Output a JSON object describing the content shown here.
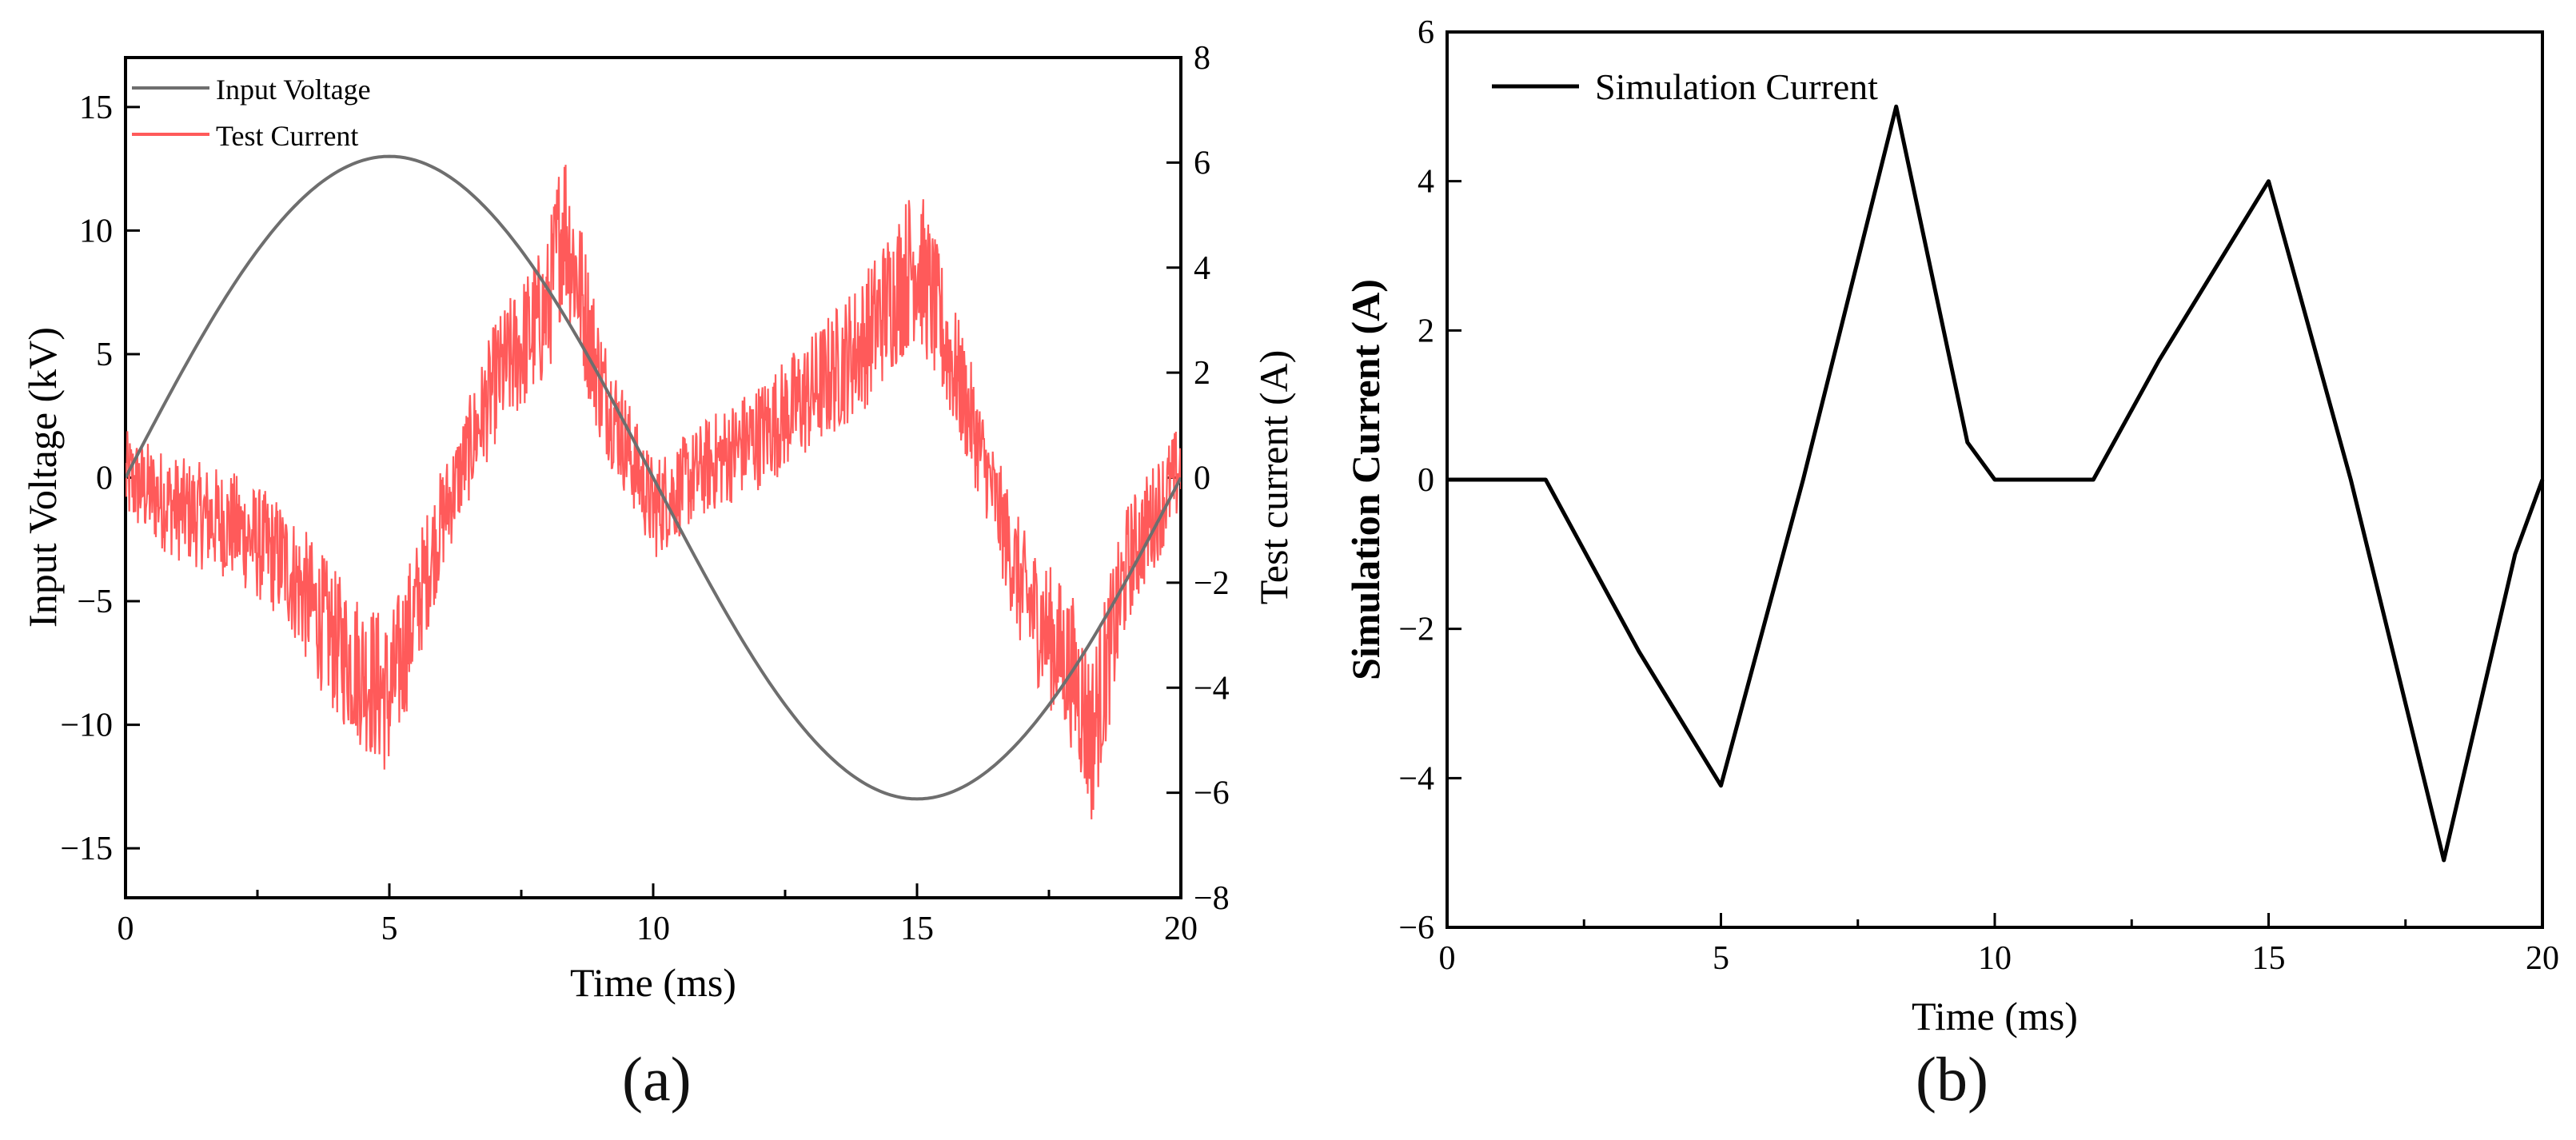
{
  "colors": {
    "voltage": "#6e6e6e",
    "test_current": "#ff5a5a",
    "simulation": "#000000"
  },
  "chart_data": [
    {
      "type": "line",
      "panel": "a",
      "caption": "(a)",
      "xlabel": "Time (ms)",
      "ylabel": "Input Voltage (kV)",
      "y2label": "Test current (A)",
      "xlim": [
        0,
        20
      ],
      "ylim": [
        -17,
        17
      ],
      "y2lim": [
        -8,
        8
      ],
      "xticks": [
        "0",
        "5",
        "10",
        "15",
        "20"
      ],
      "yticks": [
        "15",
        "10",
        "5",
        "0",
        "−5",
        "−10",
        "−15"
      ],
      "y2ticks": [
        "8",
        "6",
        "4",
        "2",
        "0",
        "−2",
        "−4",
        "−6",
        "−8"
      ],
      "legend": [
        "Input Voltage",
        "Test Current"
      ],
      "legend_position": "top-left",
      "series": [
        {
          "name": "Input Voltage",
          "axis": "left",
          "function": "13*sin(2*pi*t/20)",
          "x": [
            0,
            1,
            2,
            3,
            4,
            5,
            6,
            7,
            8,
            9,
            10,
            11,
            12,
            13,
            14,
            15,
            16,
            17,
            18,
            19,
            20
          ],
          "values": [
            0,
            4.02,
            7.64,
            10.52,
            12.36,
            13,
            12.36,
            10.52,
            7.64,
            4.02,
            0,
            -4.02,
            -7.64,
            -10.52,
            -12.36,
            -13,
            -12.36,
            -10.52,
            -7.64,
            -4.02,
            0
          ]
        },
        {
          "name": "Test Current",
          "axis": "right",
          "note": "noisy measured trace; envelope center values",
          "x": [
            0,
            1,
            2,
            3,
            4,
            5,
            6,
            7,
            8,
            8.3,
            9,
            10,
            11,
            12,
            13,
            14,
            15,
            16,
            17,
            18,
            18.3,
            19,
            20
          ],
          "values": [
            0,
            -0.6,
            -0.9,
            -1.6,
            -3.2,
            -4.2,
            -0.8,
            1.8,
            3.2,
            5.0,
            1.8,
            -0.6,
            0.2,
            0.8,
            1.6,
            2.6,
            4.2,
            1.2,
            -2.2,
            -3.8,
            -5.0,
            -1.6,
            0.2
          ],
          "noise_amplitude": 1.0
        }
      ]
    },
    {
      "type": "line",
      "panel": "b",
      "caption": "(b)",
      "xlabel": "Time (ms)",
      "ylabel": "Simulation Current (A)",
      "xlim": [
        0,
        20
      ],
      "ylim": [
        -6,
        6
      ],
      "xticks": [
        "0",
        "5",
        "10",
        "15",
        "20"
      ],
      "yticks": [
        "6",
        "4",
        "2",
        "0",
        "−2",
        "−4",
        "−6"
      ],
      "legend": [
        "Simulation Current"
      ],
      "legend_position": "top-left",
      "series": [
        {
          "name": "Simulation Current",
          "x": [
            0,
            1.8,
            3.5,
            5.0,
            6.5,
            8.2,
            9.5,
            10.0,
            11.8,
            13.0,
            15.0,
            16.5,
            18.2,
            19.5,
            20.0
          ],
          "values": [
            0,
            0,
            -2.3,
            -4.1,
            0,
            5.0,
            0.5,
            0,
            0,
            1.6,
            4.0,
            0,
            -5.1,
            -1.0,
            0
          ]
        }
      ]
    }
  ]
}
